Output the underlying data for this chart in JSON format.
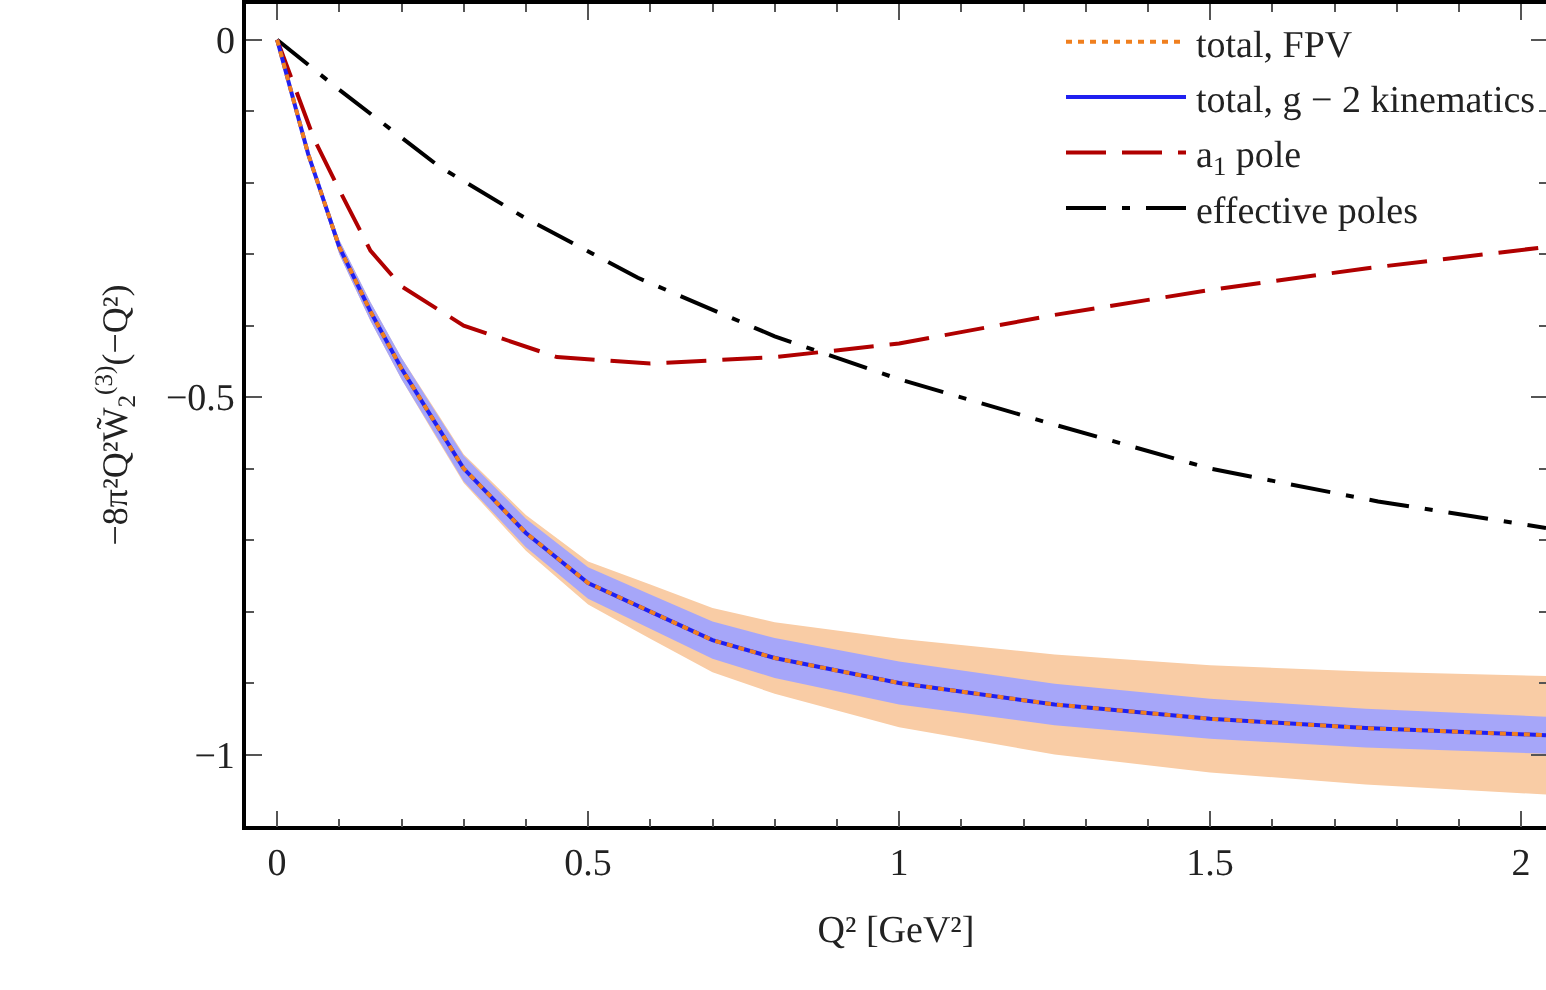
{
  "chart_data": {
    "type": "line",
    "xlabel": "Q² [GeV²]",
    "ylabel": "−8π²Q²W̃$_{2}$$^{(3)}$(−Q²)",
    "xlim": [
      -0.05,
      2.04
    ],
    "ylim": [
      -1.1,
      0.05
    ],
    "xticks": [
      0,
      0.5,
      1,
      1.5,
      2
    ],
    "yticks": [
      0,
      -0.5,
      -1
    ],
    "grid": false,
    "legend": "top right",
    "marker": "none",
    "series": [
      {
        "name": "total, FPV",
        "color": "#f07f1e",
        "line_style": "dotted",
        "x": [
          0,
          0.05,
          0.1,
          0.15,
          0.2,
          0.25,
          0.3,
          0.4,
          0.5,
          0.6,
          0.7,
          0.8,
          1.0,
          1.25,
          1.5,
          1.75,
          2.04
        ],
        "values": [
          0,
          -0.16,
          -0.29,
          -0.38,
          -0.46,
          -0.53,
          -0.6,
          -0.69,
          -0.76,
          -0.8,
          -0.84,
          -0.865,
          -0.9,
          -0.93,
          -0.95,
          -0.963,
          -0.973
        ],
        "lower": [
          0,
          -0.165,
          -0.3,
          -0.393,
          -0.475,
          -0.548,
          -0.62,
          -0.715,
          -0.79,
          -0.838,
          -0.885,
          -0.915,
          -0.962,
          -1.0,
          -1.025,
          -1.042,
          -1.056
        ],
        "upper": [
          0,
          -0.155,
          -0.28,
          -0.367,
          -0.445,
          -0.512,
          -0.58,
          -0.665,
          -0.73,
          -0.762,
          -0.795,
          -0.815,
          -0.838,
          -0.86,
          -0.875,
          -0.884,
          -0.89
        ]
      },
      {
        "name": "total, g − 2 kinematics",
        "color": "#2020f0",
        "line_style": "solid",
        "x": [
          0,
          0.05,
          0.1,
          0.15,
          0.2,
          0.25,
          0.3,
          0.4,
          0.5,
          0.6,
          0.7,
          0.8,
          1.0,
          1.25,
          1.5,
          1.75,
          2.04
        ],
        "values": [
          0,
          -0.16,
          -0.29,
          -0.38,
          -0.46,
          -0.53,
          -0.6,
          -0.69,
          -0.76,
          -0.8,
          -0.84,
          -0.865,
          -0.9,
          -0.93,
          -0.95,
          -0.963,
          -0.973
        ],
        "lower": [
          0,
          -0.165,
          -0.3,
          -0.393,
          -0.475,
          -0.546,
          -0.618,
          -0.71,
          -0.782,
          -0.824,
          -0.866,
          -0.893,
          -0.93,
          -0.959,
          -0.978,
          -0.99,
          -0.999
        ],
        "upper": [
          0,
          -0.155,
          -0.28,
          -0.367,
          -0.445,
          -0.514,
          -0.582,
          -0.67,
          -0.738,
          -0.776,
          -0.814,
          -0.837,
          -0.87,
          -0.901,
          -0.922,
          -0.936,
          -0.947
        ]
      },
      {
        "name": "a$_{1}$ pole",
        "color": "#b00000",
        "line_style": "dashed",
        "x": [
          0,
          0.03,
          0.06,
          0.1,
          0.15,
          0.2,
          0.3,
          0.45,
          0.6,
          0.8,
          1.0,
          1.25,
          1.5,
          1.75,
          2.04
        ],
        "values": [
          0,
          -0.07,
          -0.14,
          -0.21,
          -0.295,
          -0.345,
          -0.4,
          -0.444,
          -0.453,
          -0.444,
          -0.425,
          -0.385,
          -0.35,
          -0.32,
          -0.29
        ]
      },
      {
        "name": "effective poles",
        "color": "#000000",
        "line_style": "dashdot",
        "x": [
          0,
          0.1,
          0.26,
          0.4,
          0.58,
          0.8,
          1.0,
          1.24,
          1.5,
          1.77,
          2.04
        ],
        "values": [
          0,
          -0.07,
          -0.177,
          -0.25,
          -0.333,
          -0.415,
          -0.475,
          -0.536,
          -0.6,
          -0.646,
          -0.683
        ]
      }
    ]
  }
}
